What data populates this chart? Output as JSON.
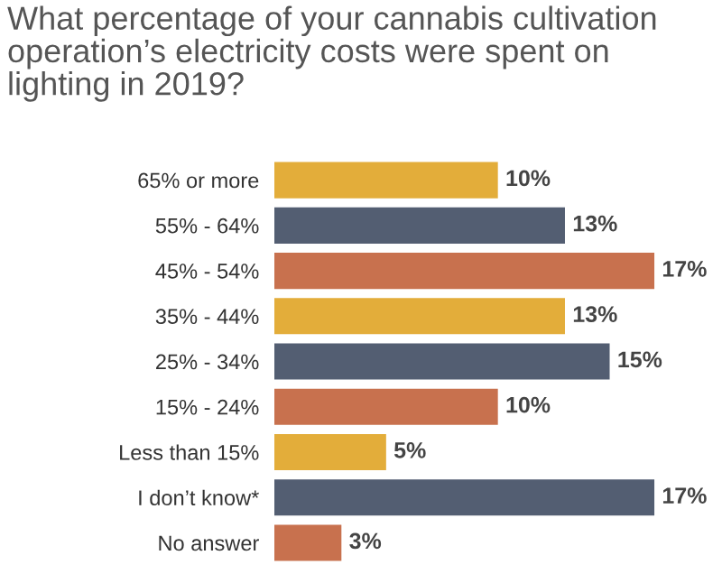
{
  "chart_data": {
    "type": "bar",
    "orientation": "horizontal",
    "title": "What percentage of your cannabis cultivation operation’s electricity costs were spent on lighting in 2019?",
    "categories": [
      "65% or more",
      "55% - 64%",
      "45% - 54%",
      "35% - 44%",
      "25% - 34%",
      "15% - 24%",
      "Less than 15%",
      "I don’t know*",
      "No answer"
    ],
    "values": [
      10,
      13,
      17,
      13,
      15,
      10,
      5,
      17,
      3
    ],
    "colors": [
      "#e3ad3a",
      "#535e72",
      "#c8714e",
      "#e3ad3a",
      "#535e72",
      "#c8714e",
      "#e3ad3a",
      "#535e72",
      "#c8714e"
    ],
    "value_labels": [
      "10%",
      "13%",
      "17%",
      "13%",
      "15%",
      "10%",
      "5%",
      "17%",
      "3%"
    ],
    "grid": false,
    "legend": false
  }
}
